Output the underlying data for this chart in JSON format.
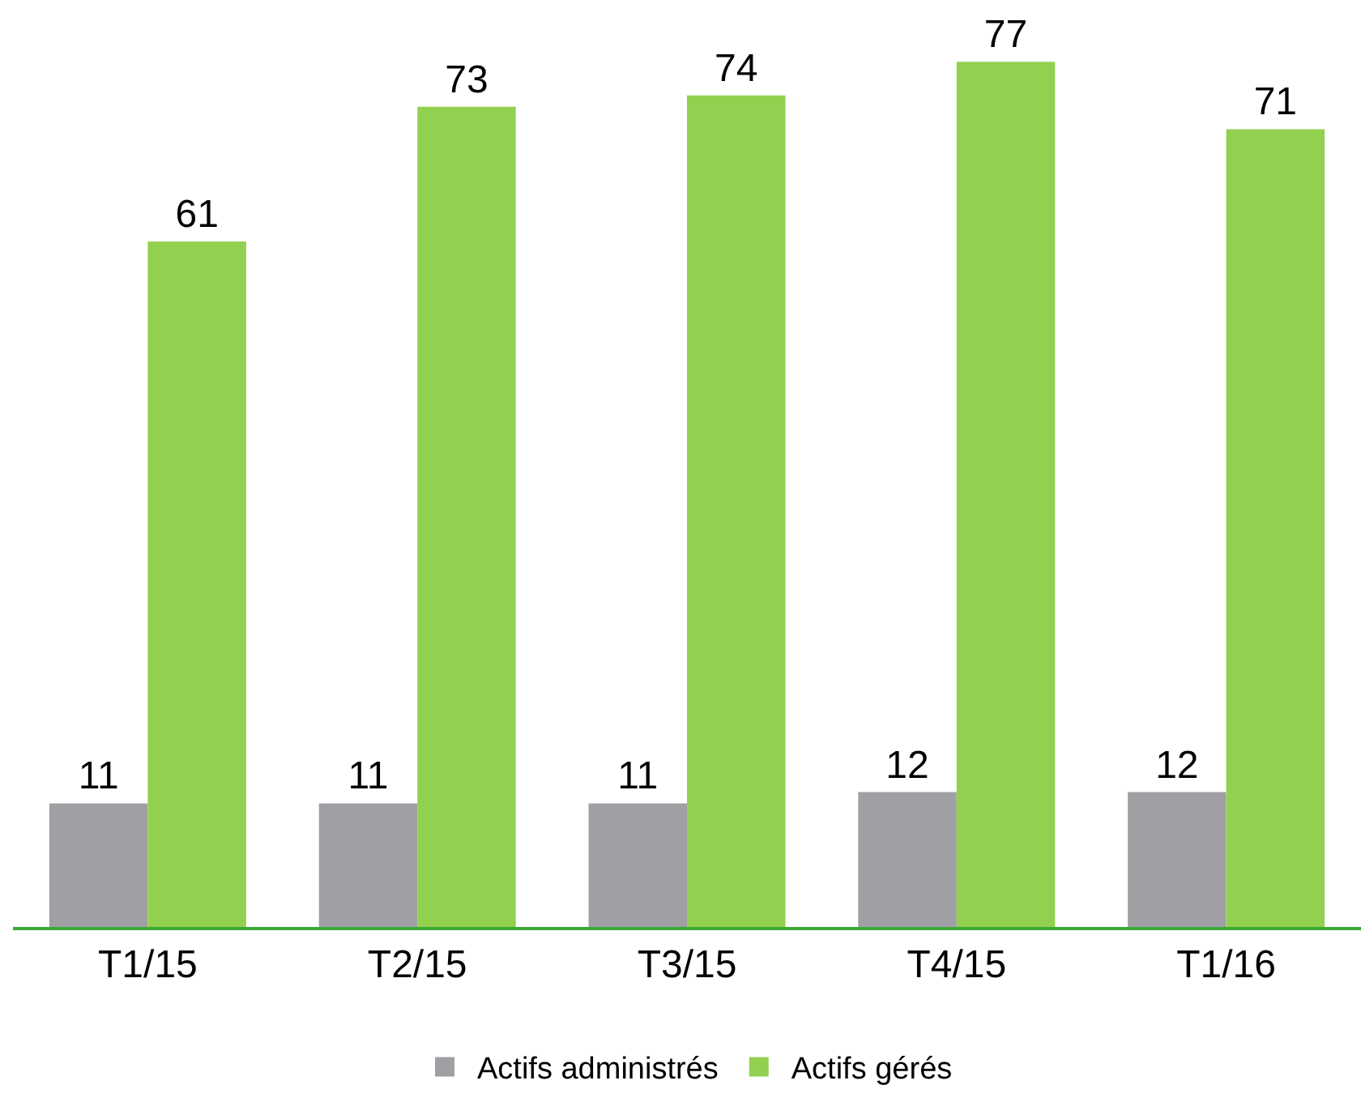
{
  "chart_data": {
    "type": "bar",
    "categories": [
      "T1/15",
      "T2/15",
      "T3/15",
      "T4/15",
      "T1/16"
    ],
    "series": [
      {
        "name": "Actifs administrés",
        "color": "#a09fa4",
        "values": [
          11,
          11,
          11,
          12,
          12
        ]
      },
      {
        "name": "Actifs gérés",
        "color": "#92d050",
        "values": [
          61,
          73,
          74,
          77,
          71
        ]
      }
    ],
    "data_labels": true,
    "legend": "bottom",
    "grid": false,
    "tick_labels": "x"
  }
}
